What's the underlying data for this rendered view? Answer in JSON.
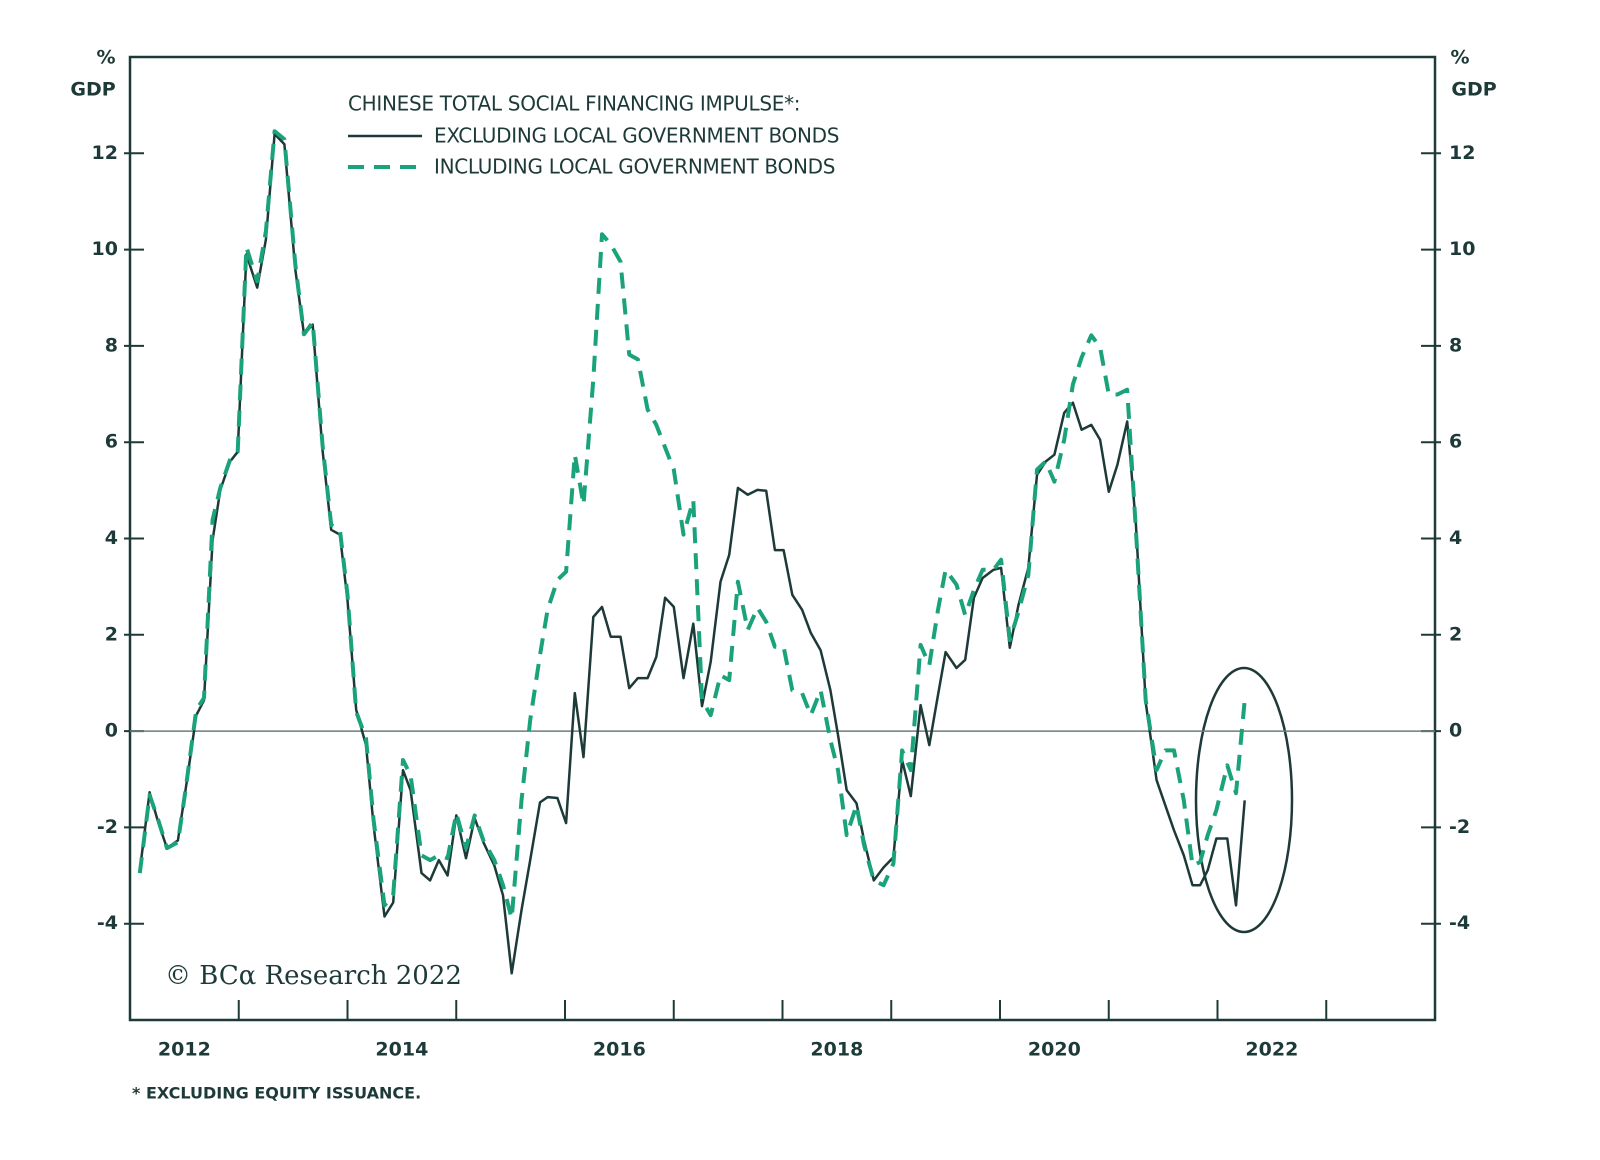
{
  "chart_data": {
    "type": "line",
    "legend_title": "CHINESE TOTAL SOCIAL FINANCING IMPULSE*:",
    "y_unit_label": [
      "%",
      "GDP"
    ],
    "y2_unit_label": [
      "%",
      "GDP"
    ],
    "annotation": "© BCα Research 2022",
    "footnote": "* EXCLUDING EQUITY ISSUANCE.",
    "xlim": [
      2012,
      2024
    ],
    "xticks": [
      {
        "value": 2012.5,
        "label": "2012"
      },
      {
        "value": 2014.5,
        "label": "2014"
      },
      {
        "value": 2016.5,
        "label": "2016"
      },
      {
        "value": 2018.5,
        "label": "2018"
      },
      {
        "value": 2020.5,
        "label": "2020"
      },
      {
        "value": 2022.5,
        "label": "2022"
      }
    ],
    "x_tick_marks": [
      2013,
      2014,
      2015,
      2016,
      2017,
      2018,
      2019,
      2020,
      2021,
      2022,
      2023
    ],
    "ylim": [
      -6,
      14
    ],
    "yticks": [
      -4,
      -2,
      0,
      2,
      4,
      6,
      8,
      10,
      12
    ],
    "y2lim": [
      -6,
      14
    ],
    "y2ticks": [
      -4,
      -2,
      0,
      2,
      4,
      6,
      8,
      10,
      12
    ],
    "zero_line": true,
    "x": [
      2012.09,
      2012.18,
      2012.26,
      2012.34,
      2012.44,
      2012.51,
      2012.61,
      2012.68,
      2012.76,
      2012.83,
      2012.92,
      2012.99,
      2013.07,
      2013.17,
      2013.25,
      2013.33,
      2013.42,
      2013.52,
      2013.6,
      2013.68,
      2013.77,
      2013.85,
      2013.93,
      2014.0,
      2014.08,
      2014.17,
      2014.24,
      2014.34,
      2014.42,
      2014.51,
      2014.58,
      2014.68,
      2014.76,
      2014.84,
      2014.92,
      2015.0,
      2015.09,
      2015.17,
      2015.25,
      2015.35,
      2015.43,
      2015.51,
      2015.6,
      2015.68,
      2015.77,
      2015.84,
      2015.93,
      2016.01,
      2016.09,
      2016.17,
      2016.26,
      2016.34,
      2016.42,
      2016.51,
      2016.59,
      2016.67,
      2016.76,
      2016.84,
      2016.92,
      2017.0,
      2017.09,
      2017.18,
      2017.26,
      2017.34,
      2017.43,
      2017.51,
      2017.59,
      2017.68,
      2017.77,
      2017.85,
      2017.93,
      2018.01,
      2018.09,
      2018.18,
      2018.26,
      2018.35,
      2018.44,
      2018.51,
      2018.59,
      2018.68,
      2018.75,
      2018.84,
      2018.93,
      2019.02,
      2019.1,
      2019.18,
      2019.27,
      2019.35,
      2019.43,
      2019.5,
      2019.6,
      2019.68,
      2019.76,
      2019.84,
      2019.94,
      2020.01,
      2020.09,
      2020.17,
      2020.26,
      2020.34,
      2020.42,
      2020.5,
      2020.59,
      2020.67,
      2020.75,
      2020.84,
      2020.92,
      2021.0,
      2021.08,
      2021.17,
      2021.25,
      2021.34,
      2021.44,
      2021.52,
      2021.6,
      2021.69,
      2021.77,
      2021.84,
      2021.91,
      2021.99,
      2022.09,
      2022.17,
      2022.25
    ],
    "series": [
      {
        "name": "EXCLUDING LOCAL GOVERNMENT BONDS",
        "color": "#1d3a38",
        "dashed": false,
        "values": [
          -2.9,
          -1.27,
          -1.9,
          -2.43,
          -2.27,
          -1.23,
          0.33,
          0.64,
          3.97,
          5.01,
          5.6,
          5.8,
          9.9,
          9.21,
          10.21,
          12.4,
          12.19,
          9.59,
          8.24,
          8.44,
          5.84,
          4.18,
          4.08,
          2.72,
          0.44,
          -0.29,
          -1.96,
          -3.85,
          -3.56,
          -0.81,
          -1.23,
          -2.95,
          -3.1,
          -2.68,
          -3.0,
          -1.75,
          -2.64,
          -1.81,
          -2.31,
          -2.79,
          -3.41,
          -5.03,
          -3.72,
          -2.68,
          -1.48,
          -1.37,
          -1.39,
          -1.91,
          0.79,
          -0.54,
          2.37,
          2.58,
          1.96,
          1.96,
          0.89,
          1.1,
          1.1,
          1.54,
          2.77,
          2.58,
          1.1,
          2.23,
          0.52,
          1.44,
          3.1,
          3.66,
          5.05,
          4.91,
          5.01,
          4.99,
          3.76,
          3.76,
          2.83,
          2.52,
          2.04,
          1.68,
          0.85,
          -0.08,
          -1.23,
          -1.5,
          -2.27,
          -3.1,
          -2.83,
          -2.62,
          -0.6,
          -1.35,
          0.54,
          -0.29,
          0.75,
          1.64,
          1.31,
          1.48,
          2.77,
          3.18,
          3.35,
          3.39,
          1.73,
          2.62,
          3.39,
          5.32,
          5.6,
          5.74,
          6.61,
          6.82,
          6.26,
          6.36,
          6.05,
          4.97,
          5.53,
          6.43,
          4.3,
          0.6,
          -1.02,
          -1.54,
          -2.06,
          -2.58,
          -3.2,
          -3.2,
          -2.89,
          -2.23,
          -2.23,
          -3.62,
          -1.44
        ]
      },
      {
        "name": "INCLUDING LOCAL GOVERNMENT BONDS",
        "color": "#1aa37a",
        "dashed": true,
        "values": [
          -2.95,
          -1.33,
          -1.85,
          -2.43,
          -2.31,
          -1.23,
          0.44,
          0.69,
          4.39,
          5.05,
          5.64,
          5.8,
          10.05,
          9.34,
          10.38,
          12.46,
          12.29,
          9.69,
          8.24,
          8.49,
          5.95,
          4.28,
          4.18,
          2.83,
          0.4,
          -0.15,
          -1.85,
          -3.62,
          -3.41,
          -0.6,
          -0.92,
          -2.58,
          -2.68,
          -2.58,
          -2.64,
          -1.71,
          -2.43,
          -1.75,
          -2.27,
          -2.68,
          -3.2,
          -3.89,
          -1.44,
          0.23,
          1.58,
          2.52,
          3.14,
          3.31,
          5.74,
          4.7,
          7.3,
          10.32,
          10.11,
          9.75,
          7.82,
          7.72,
          6.68,
          6.36,
          5.89,
          5.43,
          4.08,
          4.8,
          0.64,
          0.33,
          1.16,
          1.06,
          3.1,
          2.1,
          2.56,
          2.27,
          1.75,
          1.75,
          0.85,
          0.79,
          0.33,
          0.85,
          -0.19,
          -0.81,
          -2.16,
          -1.54,
          -2.37,
          -3.1,
          -3.2,
          -2.75,
          -0.4,
          -0.81,
          1.79,
          1.37,
          2.52,
          3.35,
          3.04,
          2.41,
          2.93,
          3.35,
          3.35,
          3.56,
          1.89,
          2.48,
          3.24,
          5.43,
          5.6,
          5.18,
          6.05,
          7.2,
          7.76,
          8.22,
          7.97,
          6.99,
          6.99,
          7.09,
          4.18,
          0.64,
          -0.81,
          -0.4,
          -0.4,
          -1.44,
          -2.79,
          -2.72,
          -2.16,
          -1.64,
          -0.71,
          -1.29,
          0.64
        ]
      }
    ]
  }
}
